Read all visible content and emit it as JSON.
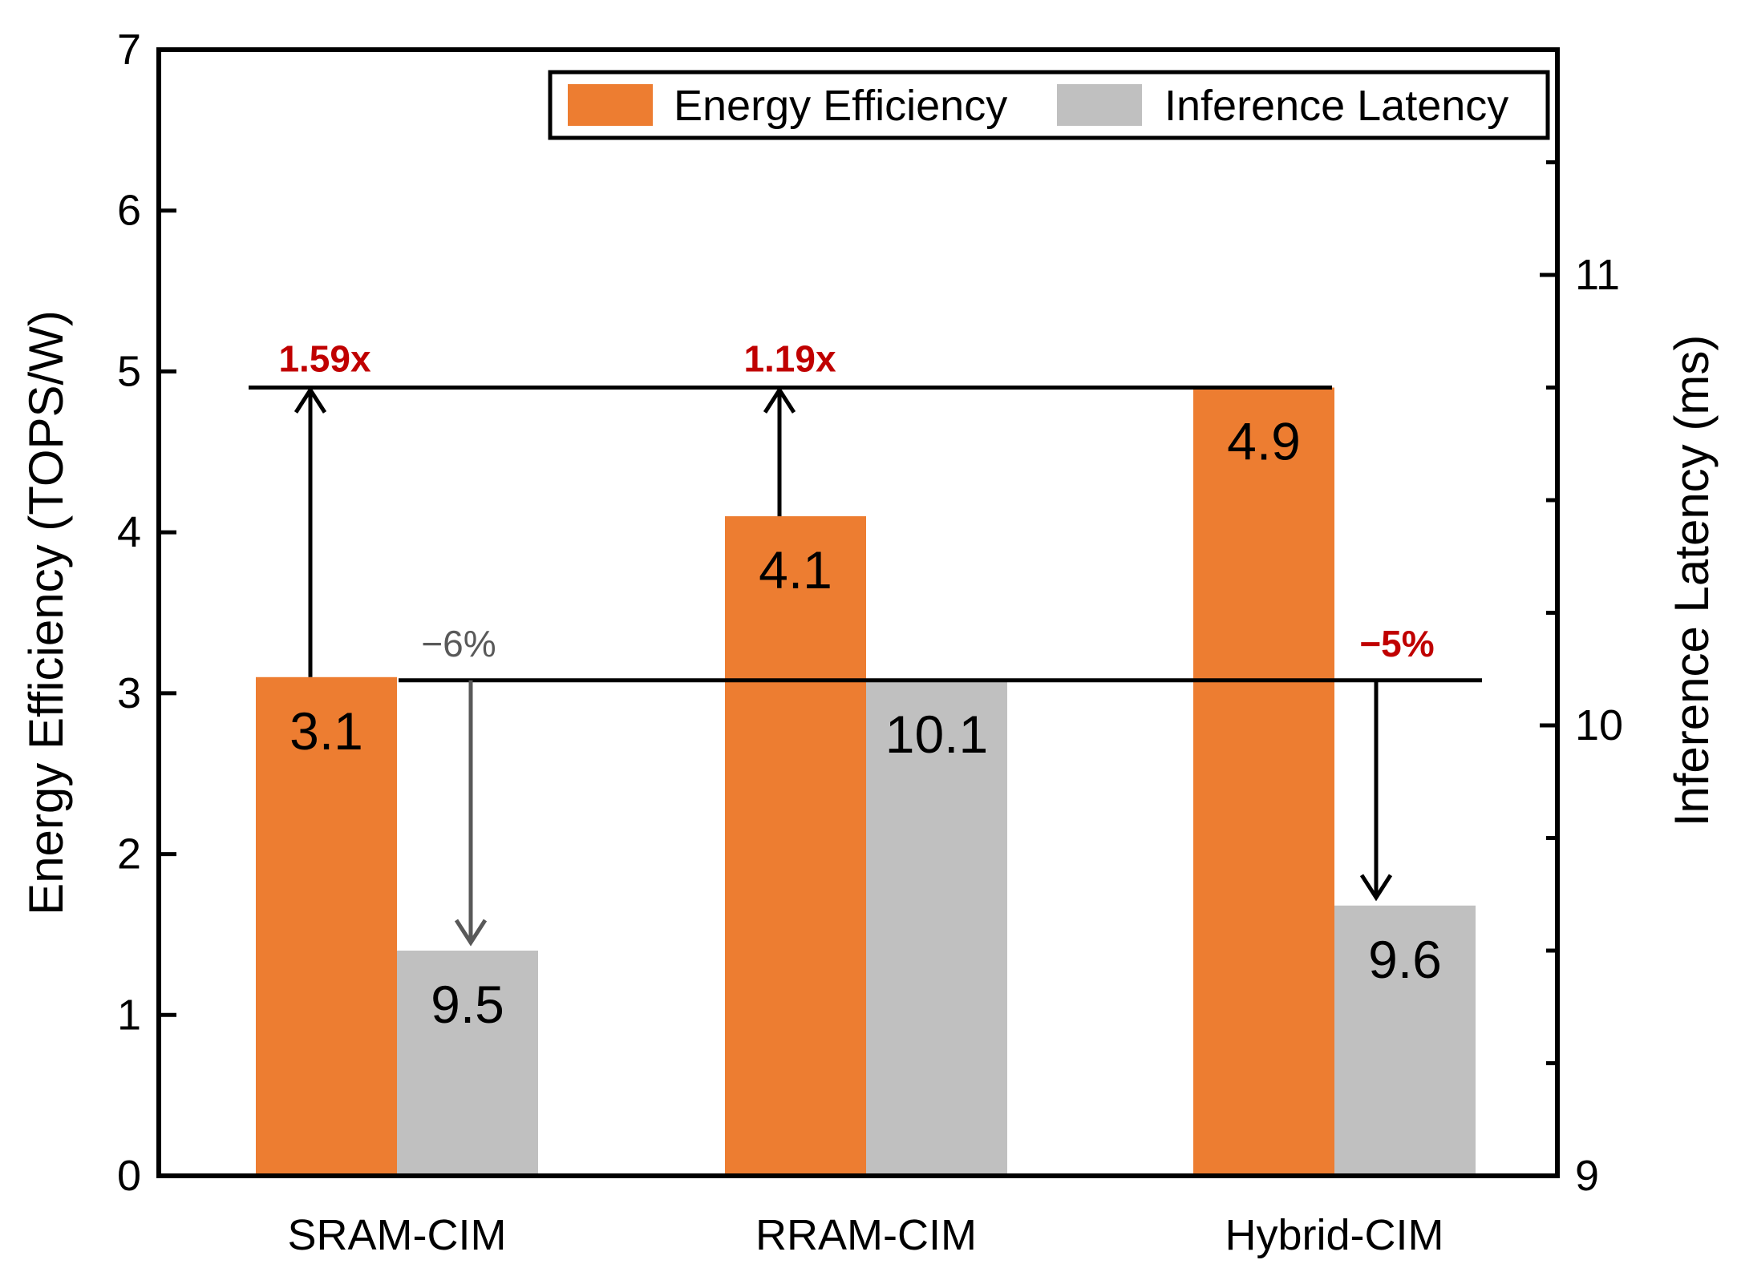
{
  "chart_data": {
    "type": "bar",
    "categories": [
      "SRAM-CIM",
      "RRAM-CIM",
      "Hybrid-CIM"
    ],
    "series": [
      {
        "name": "Energy Efficiency",
        "axis": "left",
        "color": "#ED7D31",
        "values": [
          3.1,
          4.1,
          4.9
        ],
        "labels": [
          "3.1",
          "4.1",
          "4.9"
        ]
      },
      {
        "name": "Inference Latency",
        "axis": "right",
        "color": "#C0C0C0",
        "values": [
          9.5,
          10.1,
          9.6
        ],
        "labels": [
          "9.5",
          "10.1",
          "9.6"
        ]
      }
    ],
    "ylabel": "Energy Efficiency (TOPS/W)",
    "ylim": [
      0,
      7
    ],
    "yticks": [
      "0",
      "1",
      "2",
      "3",
      "4",
      "5",
      "6",
      "7"
    ],
    "y2label": "Inference Latency (ms)",
    "y2lim": [
      9,
      11.5
    ],
    "y2ticks": [
      "9",
      "10",
      "11"
    ],
    "legend_position": "top-right",
    "grid": false,
    "annotations": [
      {
        "text": "1.59x",
        "color": "#C00000",
        "bold": true,
        "category": "SRAM-CIM",
        "series": "Energy Efficiency"
      },
      {
        "text": "1.19x",
        "color": "#C00000",
        "bold": true,
        "category": "RRAM-CIM",
        "series": "Energy Efficiency"
      },
      {
        "text": "−6%",
        "color": "#595959",
        "bold": false,
        "category": "SRAM-CIM",
        "series": "Inference Latency"
      },
      {
        "text": "−5%",
        "color": "#C00000",
        "bold": true,
        "category": "Hybrid-CIM",
        "series": "Inference Latency"
      }
    ]
  }
}
